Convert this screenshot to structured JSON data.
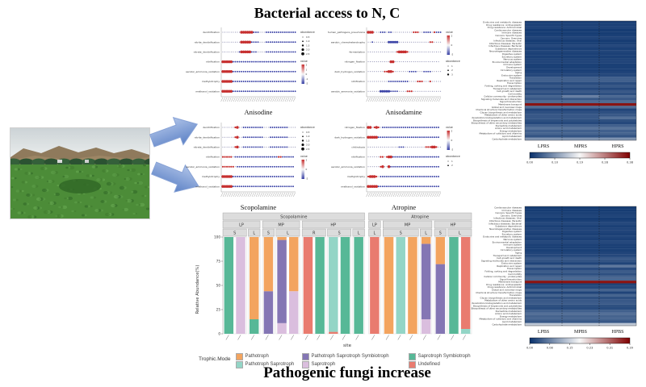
{
  "titles": {
    "top": "Bacterial access to N, C",
    "bottom": "Pathogenic fungi increase"
  },
  "photo": {
    "description": "green crop field with hills, trees and sky"
  },
  "arrows": {
    "color_light": "#A6BCE6",
    "color_dark": "#5D82C6"
  },
  "chart_data": [
    {
      "id": "anisodine",
      "type": "scatter",
      "title": "Anisodine",
      "dot_colors": {
        "red": "#C62F2F",
        "blue": "#3B43A6"
      },
      "legend_order": [
        "abundance",
        "value"
      ],
      "abundance_labels": [
        "0.5",
        "1.0",
        "1.5",
        "2.0",
        "2.5"
      ],
      "value_labels": [
        "2",
        "1",
        "0",
        "-1",
        "-2"
      ],
      "rows": [
        [
          "denitrification",
          ".........RRRRRRbbb...bbbbbbbbbbbbbbb"
        ],
        [
          "nitrite_denitrification",
          ".........RRRRRbbbb...bbbbbbbbbbbbbbb"
        ],
        [
          "nitrate_denitrification",
          "........bRRRRRbbb....bbbbbbbbbbbbbbb"
        ],
        [
          "nitrification",
          "RRRRRbbbbbbbbbbbbbbbbbbbbbbbbbbbbbbb"
        ],
        [
          "aerobic_ammonia_oxidation",
          "RRRRRbbbbbbbbbbbbbbbbbbbbbbbbbbbbbbb"
        ],
        [
          "methylotrophy",
          "RRRRRbbbbbbbbbbbbbbbbbbbbbbbbbbbbbbb"
        ],
        [
          "methanol_oxidation",
          "RRRRRbbbbbbbbbbbbbbbbbbbbbbbbbbbbbbb"
        ]
      ]
    },
    {
      "id": "anisodamine",
      "type": "scatter",
      "title": "Anisodamine",
      "dot_colors": {
        "red": "#C62F2F",
        "blue": "#3B43A6"
      },
      "legend_order": [
        "value",
        "abundance"
      ],
      "abundance_labels": [
        "1",
        "2",
        "3"
      ],
      "value_labels": [
        "2",
        "0",
        "-2"
      ],
      "rows": [
        [
          "human_pathogens_pneumonia",
          "RRR...bbb.bb..........rrr..bbbb.rbbb"
        ],
        [
          "aerobic_chemoheterotrophy",
          "..b.......BBBBB...............rr...."
        ],
        [
          "fermentation",
          "..............rRRRRr................"
        ],
        [
          "nitrogen_fixation",
          "...........RR......................"
        ],
        [
          "dark_hydrogen_oxidation",
          "........rrRRr.......bbbb...bbbb....."
        ],
        [
          "nitrification",
          "..........bbbbbbbbbb....rrr...r....."
        ],
        [
          "aerobic_ammonia_oxidation",
          "......BBBBBbbbb....rrr.............."
        ]
      ]
    },
    {
      "id": "scopolamine_dots",
      "type": "scatter",
      "title": "Scopolamine",
      "dot_colors": {
        "red": "#C62F2F",
        "blue": "#3B43A6"
      },
      "legend_order": [
        "abundance",
        "value"
      ],
      "abundance_labels": [
        "0.5",
        "1.0",
        "1.5",
        "2.0",
        "2.5"
      ],
      "value_labels": [
        "2",
        "0",
        "-2"
      ],
      "rows": [
        [
          "denitrification",
          "......rR..bbbbbbbbbb...bbbbbbbbb...."
        ],
        [
          "nitrite_denitrification",
          "......rR..bbbbbbbbbb...bbbbbbbbb...."
        ],
        [
          "nitrate_denitrification",
          "......rR..bbbbbbbbbb...bbbbbbbbb...."
        ],
        [
          "nitrification",
          "rrrrr.bbbbbbbbbbbbbbbbbbbbbrrbbbbbb"
        ],
        [
          "aerobic_ammonia_oxidation",
          "rrrrrr.bbbbbbbbbbbbbbbbbbbbbbbbbbbb"
        ],
        [
          "methylotrophy",
          "RRRRRbbbbbbbbbbbbbbbbbbbbbbbbbbbbbb"
        ],
        [
          "methanol_oxidation",
          "RRRRRbbbbbbbbbbbbbbbbbbbbbbbbbbbbbb"
        ]
      ]
    },
    {
      "id": "atropine_dots",
      "type": "scatter",
      "title": "Atropine",
      "dot_colors": {
        "red": "#C62F2F",
        "blue": "#3B43A6"
      },
      "legend_order": [
        "value",
        "abundance"
      ],
      "abundance_labels": [
        "1",
        "2"
      ],
      "value_labels": [
        "2",
        "0",
        "-2"
      ],
      "rows": [
        [
          "nitrogen_fixation",
          "RR.rRr.bbbbbbbbbbbbbbbbbbbbbbbbbbbb"
        ],
        [
          "dark_hydrogen_oxidation",
          "RRRRRbbbbbbbbbbbbbbbbbbbbbbbbbbbbbb"
        ],
        [
          "chitinolysis",
          "...............bbb..........rrrRRr.."
        ],
        [
          "nitrification",
          "......rr.rRRbbbbbbbbbbbbbbbbbbbbbbb"
        ],
        [
          "aerobic_ammonia_oxidation",
          "......rR..Rbbbbbbbbbbbbbbbbbbbbbbbb"
        ],
        [
          "methylotrophy",
          "rRRRr.bbbbbbbbbbbbbbbbbbbbbbbbbbbbb"
        ],
        [
          "methanol_oxidation",
          "RRRRRbbbbbbbbbbbbbbbbbbbbbbbbbbbbbb"
        ]
      ]
    },
    {
      "id": "funguild_bars",
      "type": "bar",
      "ylabel": "Relative Abundance(%)",
      "xlabel": "site",
      "yticks": [
        "100",
        "75",
        "50",
        "25",
        "0"
      ],
      "ylim": [
        0,
        100
      ],
      "legend_title": "Trophic.Mode",
      "palette": {
        "P": "#F3A45F",
        "PS": "#93D5C6",
        "PSS": "#8476B4",
        "S": "#DABEDE",
        "SS": "#57B897",
        "U": "#E97B6F"
      },
      "legend": [
        {
          "key": "P",
          "label": "Pathotroph"
        },
        {
          "key": "PSS",
          "label": "Pathotroph Saprotroph Symbiotroph"
        },
        {
          "key": "SS",
          "label": "Saprotroph Symbiotroph"
        },
        {
          "key": "PS",
          "label": "Pathotroph Saprotroph"
        },
        {
          "key": "S",
          "label": "Saprotroph"
        },
        {
          "key": "U",
          "label": "Undefined"
        }
      ],
      "facets": [
        {
          "label": "Scopolamine",
          "groups": [
            {
              "label": "LP",
              "subs": [
                {
                  "label": "S",
                  "bars": [
                    [
                      [
                        "SS",
                        100
                      ]
                    ],
                    [
                      [
                        "S",
                        100
                      ]
                    ]
                  ]
                },
                {
                  "label": "L",
                  "bars": [
                    [
                      [
                        "SS",
                        15
                      ],
                      [
                        "P",
                        85
                      ]
                    ]
                  ]
                }
              ]
            },
            {
              "label": "MP",
              "subs": [
                {
                  "label": "S",
                  "bars": [
                    [
                      [
                        "PSS",
                        44
                      ],
                      [
                        "P",
                        56
                      ]
                    ]
                  ]
                },
                {
                  "label": "L",
                  "bars": [
                    [
                      [
                        "S",
                        11
                      ],
                      [
                        "PSS",
                        86
                      ],
                      [
                        "P",
                        3
                      ]
                    ],
                    [
                      [
                        "S",
                        44
                      ],
                      [
                        "P",
                        56
                      ]
                    ]
                  ]
                }
              ]
            },
            {
              "label": "HP",
              "subs": [
                {
                  "label": "R",
                  "bars": [
                    [
                      [
                        "U",
                        100
                      ]
                    ],
                    [
                      [
                        "SS",
                        100
                      ]
                    ]
                  ]
                },
                {
                  "label": "S",
                  "bars": [
                    [
                      [
                        "U",
                        2
                      ],
                      [
                        "PS",
                        98
                      ]
                    ],
                    [
                      [
                        "SS",
                        100
                      ]
                    ]
                  ]
                },
                {
                  "label": "L",
                  "bars": [
                    [
                      [
                        "SS",
                        100
                      ]
                    ]
                  ]
                }
              ]
            }
          ]
        },
        {
          "label": "Atropine",
          "groups": [
            {
              "label": "LP",
              "subs": [
                {
                  "label": "L",
                  "bars": [
                    [
                      [
                        "U",
                        100
                      ]
                    ]
                  ]
                }
              ]
            },
            {
              "label": "MP",
              "subs": [
                {
                  "label": "S",
                  "bars": [
                    [
                      [
                        "P",
                        100
                      ]
                    ],
                    [
                      [
                        "PS",
                        100
                      ]
                    ],
                    [
                      [
                        "P",
                        100
                      ]
                    ]
                  ]
                },
                {
                  "label": "L",
                  "bars": [
                    [
                      [
                        "S",
                        15
                      ],
                      [
                        "PSS",
                        78
                      ],
                      [
                        "P",
                        7
                      ]
                    ]
                  ]
                }
              ]
            },
            {
              "label": "HP",
              "subs": [
                {
                  "label": "S",
                  "bars": [
                    [
                      [
                        "PSS",
                        72
                      ],
                      [
                        "P",
                        28
                      ]
                    ]
                  ]
                },
                {
                  "label": "L",
                  "bars": [
                    [
                      [
                        "SS",
                        100
                      ]
                    ],
                    [
                      [
                        "PS",
                        5
                      ],
                      [
                        "U",
                        95
                      ]
                    ]
                  ]
                }
              ]
            }
          ]
        }
      ]
    },
    {
      "id": "kegg_rs",
      "type": "heatmap",
      "xlabels": [
        "LPRS",
        "MPRS",
        "HPRS"
      ],
      "scale_ticks": [
        "0.00",
        "0.10",
        "0.19",
        "0.28",
        "0.38"
      ],
      "rows": [
        [
          "Endocrine and metabolic diseases",
          0.04
        ],
        [
          "Drug resistance: Antineoplastic",
          0.04
        ],
        [
          "Drug resistance: Antimicrobial",
          0.05
        ],
        [
          "Cardiovascular diseases",
          0.03
        ],
        [
          "Immune diseases",
          0.03
        ],
        [
          "Cancers: Specific types",
          0.04
        ],
        [
          "Cancers: Overview",
          0.05
        ],
        [
          "Infectious diseases: Viral",
          0.03
        ],
        [
          "Infectious diseases: Parasitic",
          0.04
        ],
        [
          "Infectious diseases: Bacterial",
          0.06
        ],
        [
          "Substance dependence",
          0.04
        ],
        [
          "Neurodegenerative diseases",
          0.05
        ],
        [
          "Digestive system",
          0.04
        ],
        [
          "Excretory system",
          0.04
        ],
        [
          "Nervous system",
          0.05
        ],
        [
          "Environmental adaptation",
          0.05
        ],
        [
          "Immune system",
          0.04
        ],
        [
          "Development",
          0.04
        ],
        [
          "Circulatory system",
          0.04
        ],
        [
          "Aging",
          0.05
        ],
        [
          "Endocrine system",
          0.06
        ],
        [
          "Translation",
          0.12
        ],
        [
          "Replication and repair",
          0.12
        ],
        [
          "Transcription",
          0.07
        ],
        [
          "Folding, sorting and degradation",
          0.1
        ],
        [
          "Transport and catabolism",
          0.06
        ],
        [
          "Cell growth and death",
          0.1
        ],
        [
          "Cell motility",
          0.08
        ],
        [
          "Cellular community - prokaryotes",
          [
            0.13,
            0.2,
            0.14
          ]
        ],
        [
          "Signaling molecules and interaction",
          0.1
        ],
        [
          "Signal transduction",
          0.15
        ],
        [
          "Membrane transport",
          0.96
        ],
        [
          "Global and overview maps",
          0.15
        ],
        [
          "Chemical structure transformation maps",
          0.05
        ],
        [
          "Glycan biosynthesis and metabolism",
          0.08
        ],
        [
          "Metabolism of other amino acids",
          0.1
        ],
        [
          "Xenobiotics biodegradation and metabolism",
          [
            0.1,
            0.1,
            0.16
          ]
        ],
        [
          "Biosynthesis of terpenoids and polyketides",
          0.08
        ],
        [
          "Biosynthesis of other secondary metabolites",
          0.06
        ],
        [
          "Nucleotide metabolism",
          0.12
        ],
        [
          "Amino acid metabolism",
          0.17
        ],
        [
          "Energy metabolism",
          0.12
        ],
        [
          "Metabolism of cofactors and vitamins",
          0.13
        ],
        [
          "Lipid metabolism",
          0.09
        ],
        [
          "Carbohydrate metabolism",
          0.25
        ]
      ]
    },
    {
      "id": "kegg_bs",
      "type": "heatmap",
      "xlabels": [
        "LPBS",
        "MPBS",
        "HPBS"
      ],
      "scale_ticks": [
        "0.00",
        "0.08",
        "0.15",
        "0.23",
        "0.31",
        "0.39"
      ],
      "rows": [
        [
          "Cardiovascular diseases",
          0.03
        ],
        [
          "Immune diseases",
          0.03
        ],
        [
          "Cancers: Specific types",
          0.04
        ],
        [
          "Cancers: Overview",
          0.05
        ],
        [
          "Infectious diseases: Viral",
          0.03
        ],
        [
          "Infectious diseases: Parasitic",
          0.04
        ],
        [
          "Infectious diseases: Bacterial",
          0.06
        ],
        [
          "Substance dependence",
          0.04
        ],
        [
          "Neurodegenerative diseases",
          0.05
        ],
        [
          "Digestive system",
          0.05
        ],
        [
          "Excretory system",
          0.04
        ],
        [
          "Endocrine and metabolic diseases",
          0.05
        ],
        [
          "Nervous system",
          0.04
        ],
        [
          "Environmental adaptation",
          0.06
        ],
        [
          "Immune system",
          0.04
        ],
        [
          "Development",
          0.04
        ],
        [
          "Circulatory system",
          0.04
        ],
        [
          "Aging",
          0.05
        ],
        [
          "Transport and catabolism",
          0.06
        ],
        [
          "Cell growth and death",
          0.1
        ],
        [
          "Signaling molecules and interaction",
          0.09
        ],
        [
          "Endocrine system",
          0.05
        ],
        [
          "Replication and repair",
          [
            0.14,
            0.14,
            0.18
          ]
        ],
        [
          "Transcription",
          0.07
        ],
        [
          "Folding, sorting and degradation",
          0.11
        ],
        [
          "Cell motility",
          0.08
        ],
        [
          "Cellular community - prokaryotes",
          0.13
        ],
        [
          "Signal transduction",
          0.14
        ],
        [
          "Membrane transport",
          0.96
        ],
        [
          "Drug resistance: Antineoplastic",
          0.05
        ],
        [
          "Drug resistance: Antimicrobial",
          0.06
        ],
        [
          "Global and overview maps",
          0.13
        ],
        [
          "Chemical structure transformation maps",
          0.05
        ],
        [
          "Translation",
          0.13
        ],
        [
          "Glycan biosynthesis and metabolism",
          0.08
        ],
        [
          "Metabolism of other amino acids",
          0.1
        ],
        [
          "Xenobiotics biodegradation and metabolism",
          0.11
        ],
        [
          "Biosynthesis of terpenoids and polyketides",
          0.08
        ],
        [
          "Biosynthesis of other secondary metabolites",
          0.07
        ],
        [
          "Nucleotide metabolism",
          0.12
        ],
        [
          "Amino acid metabolism",
          0.16
        ],
        [
          "Energy metabolism",
          0.13
        ],
        [
          "Metabolism of cofactors and vitamins",
          0.13
        ],
        [
          "Lipid metabolism",
          0.1
        ],
        [
          "Carbohydrate metabolism",
          0.38
        ]
      ]
    }
  ]
}
